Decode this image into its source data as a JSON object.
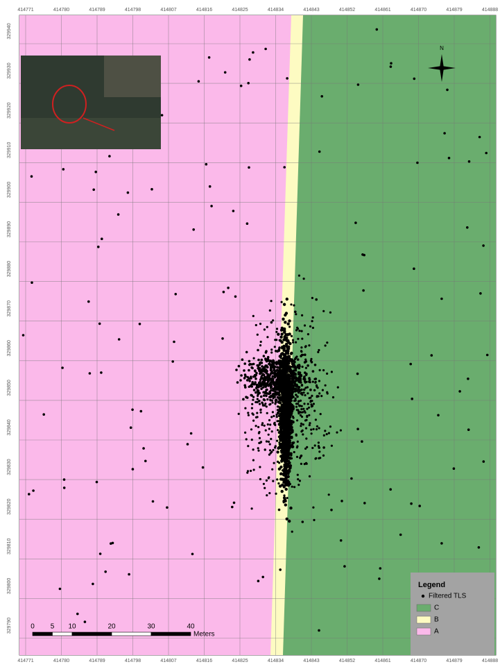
{
  "map": {
    "x_labels": [
      414771,
      414780,
      414789,
      414798,
      414807,
      414816,
      414825,
      414834,
      414843,
      414852,
      414861,
      414870,
      414879,
      414888
    ],
    "y_labels": [
      329940,
      329930,
      329920,
      329910,
      329900,
      329890,
      329880,
      329870,
      329860,
      329850,
      329840,
      329830,
      329820,
      329810,
      329800,
      329790
    ],
    "north": "N",
    "scale_bar": {
      "labels": [
        "0",
        "5",
        "10",
        "20",
        "30",
        "40"
      ],
      "unit": "Meters"
    },
    "legend": {
      "title": "Legend",
      "items": [
        {
          "label": "Filtered TLS",
          "color": "#000000"
        },
        {
          "label": "C",
          "color": "#6aad6e"
        },
        {
          "label": "B",
          "color": "#fdfbc2"
        },
        {
          "label": "A",
          "color": "#fbb9ea"
        }
      ]
    }
  }
}
